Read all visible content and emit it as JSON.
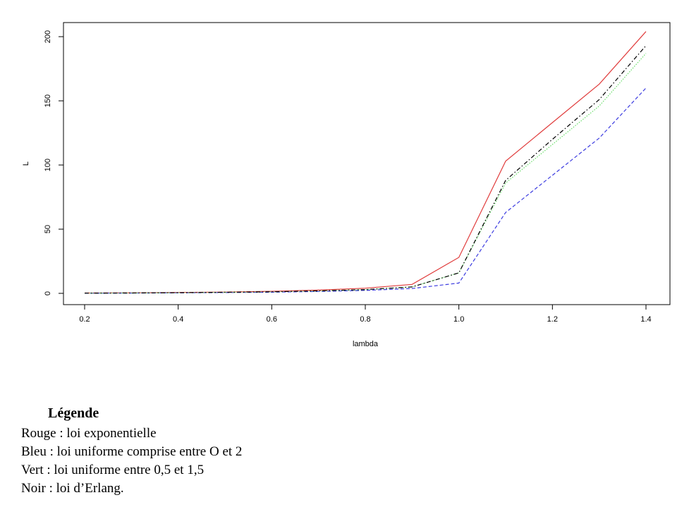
{
  "chart_data": {
    "type": "line",
    "xlabel": "lambda",
    "ylabel": "L",
    "xlim": [
      0.2,
      1.4
    ],
    "ylim": [
      0,
      200
    ],
    "xticks": [
      "0.2",
      "0.4",
      "0.6",
      "0.8",
      "1.0",
      "1.2",
      "1.4"
    ],
    "yticks": [
      "0",
      "50",
      "100",
      "150",
      "200"
    ],
    "x": [
      0.2,
      0.3,
      0.4,
      0.5,
      0.6,
      0.7,
      0.8,
      0.9,
      1.0,
      1.1,
      1.2,
      1.3,
      1.4
    ],
    "grid": false,
    "series": [
      {
        "color": "#e03c3c",
        "dash": "solid",
        "values": [
          0.25,
          0.4,
          0.7,
          1.0,
          1.6,
          2.5,
          4.0,
          7.0,
          28,
          103,
          133,
          163,
          204
        ]
      },
      {
        "color": "#3c3ce0",
        "dash": "dashed",
        "values": [
          0.1,
          0.2,
          0.4,
          0.6,
          0.9,
          1.5,
          2.3,
          3.8,
          8,
          63,
          92,
          121,
          160
        ]
      },
      {
        "color": "#66dd66",
        "dash": "dotted",
        "values": [
          0.15,
          0.3,
          0.5,
          0.8,
          1.2,
          1.9,
          2.9,
          5.0,
          16,
          86,
          116,
          146,
          187
        ]
      },
      {
        "color": "#000000",
        "dash": "dashdot",
        "values": [
          0.15,
          0.3,
          0.5,
          0.8,
          1.2,
          1.9,
          2.9,
          5.0,
          16,
          88,
          120,
          151,
          193
        ]
      }
    ]
  },
  "legend": {
    "title": "Légende",
    "lines": [
      "Rouge : loi exponentielle",
      "Bleu : loi uniforme comprise entre O et 2",
      "Vert : loi uniforme entre 0,5 et 1,5",
      "Noir : loi d’Erlang."
    ]
  }
}
